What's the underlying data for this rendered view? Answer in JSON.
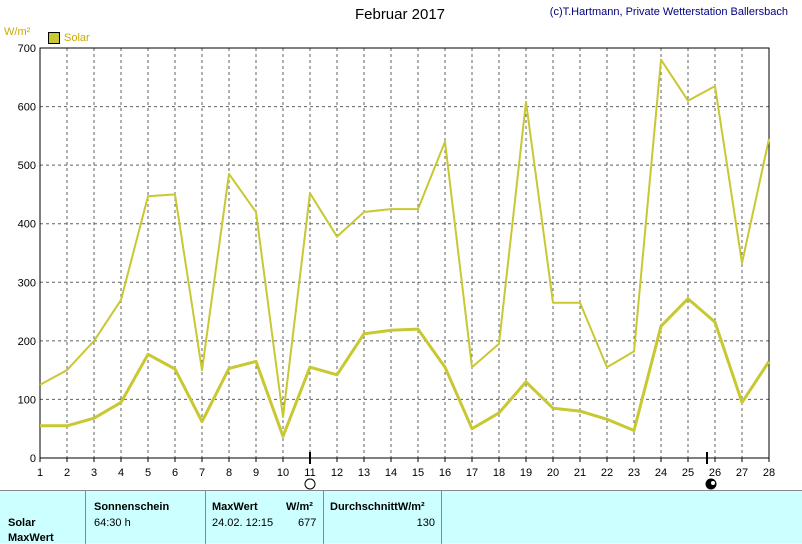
{
  "header": {
    "title": "Februar 2017",
    "copyright": "(c)T.Hartmann, Private Wetterstation Ballersbach",
    "y_unit": "W/m²"
  },
  "colors": {
    "series": "#c8c832",
    "grid": "#606060",
    "axis_text": "#000000"
  },
  "chart_data": {
    "type": "line",
    "ylim": [
      0,
      700
    ],
    "yticks": [
      0,
      100,
      200,
      300,
      400,
      500,
      600,
      700
    ],
    "categories": [
      "1",
      "2",
      "3",
      "4",
      "5",
      "6",
      "7",
      "8",
      "9",
      "10",
      "11",
      "12",
      "13",
      "14",
      "15",
      "16",
      "17",
      "18",
      "19",
      "20",
      "21",
      "22",
      "23",
      "24",
      "25",
      "26",
      "27",
      "28"
    ],
    "legend": [
      "Solar"
    ],
    "grid": true,
    "series": [
      {
        "name": "Solar",
        "values": [
          125,
          150,
          200,
          270,
          447,
          450,
          150,
          485,
          420,
          70,
          452,
          378,
          420,
          425,
          425,
          540,
          155,
          195,
          608,
          265,
          265,
          155,
          182,
          680,
          610,
          635,
          333,
          545
        ]
      },
      {
        "name": "Solar",
        "values": [
          55,
          55,
          68,
          95,
          177,
          152,
          62,
          153,
          165,
          37,
          155,
          142,
          212,
          218,
          220,
          155,
          50,
          77,
          130,
          85,
          80,
          66,
          47,
          225,
          272,
          232,
          95,
          165
        ]
      }
    ]
  },
  "panel": {
    "row1_label": "Solar",
    "row2_label": "MaxWert",
    "sonnenschein_header": "Sonnenschein",
    "sonnenschein_value": "64:30 h",
    "maxwert_header": "MaxWert",
    "maxwert_unit": "W/m²",
    "maxwert_date": "24.02.  12:15",
    "maxwert_value": "677",
    "avg_header": "DurchschnittW/m²",
    "avg_value": "130"
  }
}
